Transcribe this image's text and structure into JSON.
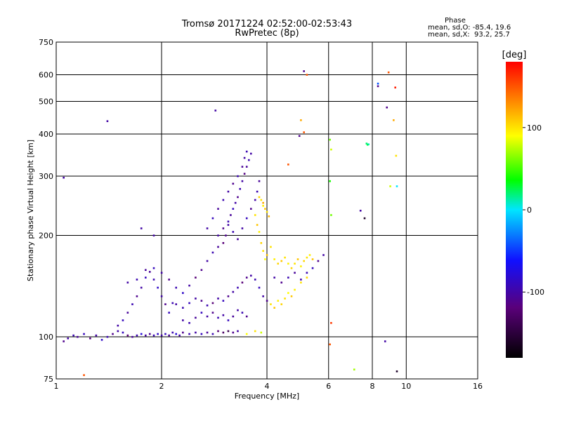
{
  "header": {
    "line1": "Tromsø 20171224 02:52:00-02:53:43",
    "line2": "RwPretec (8p)"
  },
  "phase_box": {
    "heading": "Phase",
    "o_line": "mean, sd,O: -85.4, 19.6",
    "x_line": "mean, sd,X:  93.2, 25.7"
  },
  "colorbar": {
    "unit_label": "[deg]",
    "ticks": [
      {
        "value": 100,
        "label": "100"
      },
      {
        "value": 0,
        "label": "0"
      },
      {
        "value": -100,
        "label": "-100"
      }
    ],
    "range": [
      -180,
      180
    ],
    "colors": [
      "#000000",
      "#5a007a",
      "#1010ff",
      "#00e5ff",
      "#00ff00",
      "#ffff00",
      "#ff0000"
    ]
  },
  "chart_data": {
    "type": "scatter",
    "title": "Tromsø 20171224 02:52:00-02:53:43",
    "subtitle": "RwPretec (8p)",
    "xlabel": "Frequency [MHz]",
    "ylabel": "Stationary phase Virtual Height [km]",
    "xscale": "log",
    "yscale": "log",
    "xlim": [
      1,
      16
    ],
    "ylim": [
      75,
      750
    ],
    "x_ticks": [
      1,
      2,
      4,
      6,
      8,
      10,
      16
    ],
    "x_tick_labels": [
      "1",
      "2",
      "4",
      "6",
      "8",
      "10",
      "16"
    ],
    "y_ticks": [
      75,
      100,
      200,
      300,
      400,
      500,
      600,
      750
    ],
    "y_tick_labels": [
      "75",
      "100",
      "200",
      "300",
      "400",
      "500",
      "600",
      "750"
    ],
    "grid": true,
    "color_encodes": "phase [deg]",
    "points": [
      [
        1.05,
        97,
        -110
      ],
      [
        1.08,
        99,
        -100
      ],
      [
        1.12,
        101,
        -95
      ],
      [
        1.15,
        100,
        -105
      ],
      [
        1.2,
        102,
        -90
      ],
      [
        1.25,
        99,
        -115
      ],
      [
        1.3,
        101,
        -100
      ],
      [
        1.35,
        98,
        -85
      ],
      [
        1.4,
        100,
        -95
      ],
      [
        1.45,
        102,
        -110
      ],
      [
        1.5,
        104,
        -100
      ],
      [
        1.55,
        103,
        -90
      ],
      [
        1.6,
        101,
        -120
      ],
      [
        1.65,
        100,
        -105
      ],
      [
        1.7,
        101,
        -95
      ],
      [
        1.75,
        102,
        -80
      ],
      [
        1.8,
        101,
        -100
      ],
      [
        1.85,
        102,
        -110
      ],
      [
        1.9,
        101,
        -95
      ],
      [
        1.95,
        102,
        -85
      ],
      [
        2.0,
        101,
        -100
      ],
      [
        2.05,
        102,
        -90
      ],
      [
        2.1,
        101,
        -105
      ],
      [
        2.15,
        103,
        -95
      ],
      [
        2.2,
        102,
        -80
      ],
      [
        2.25,
        101,
        -100
      ],
      [
        2.3,
        103,
        -110
      ],
      [
        2.4,
        102,
        -95
      ],
      [
        2.5,
        103,
        -100
      ],
      [
        2.6,
        102,
        -90
      ],
      [
        2.7,
        103,
        -105
      ],
      [
        2.8,
        102,
        -95
      ],
      [
        2.9,
        104,
        -120
      ],
      [
        3.0,
        103,
        -130
      ],
      [
        3.1,
        104,
        -140
      ],
      [
        3.2,
        103,
        -110
      ],
      [
        3.3,
        104,
        -100
      ],
      [
        3.5,
        102,
        90
      ],
      [
        3.7,
        104,
        100
      ],
      [
        3.85,
        103,
        80
      ],
      [
        1.5,
        108,
        -100
      ],
      [
        1.55,
        112,
        -90
      ],
      [
        1.6,
        118,
        -105
      ],
      [
        1.65,
        125,
        -95
      ],
      [
        1.7,
        132,
        -110
      ],
      [
        1.75,
        140,
        -100
      ],
      [
        1.8,
        150,
        -90
      ],
      [
        1.85,
        156,
        -105
      ],
      [
        1.9,
        148,
        -95
      ],
      [
        1.95,
        140,
        -85
      ],
      [
        2.0,
        132,
        -100
      ],
      [
        2.05,
        125,
        -110
      ],
      [
        2.1,
        118,
        -90
      ],
      [
        2.15,
        126,
        -95
      ],
      [
        1.6,
        145,
        -100
      ],
      [
        1.7,
        148,
        -95
      ],
      [
        1.8,
        158,
        -105
      ],
      [
        1.9,
        160,
        -90
      ],
      [
        2.0,
        155,
        -100
      ],
      [
        2.1,
        148,
        -110
      ],
      [
        2.2,
        140,
        -95
      ],
      [
        2.3,
        135,
        -85
      ],
      [
        2.4,
        142,
        -100
      ],
      [
        2.5,
        150,
        -120
      ],
      [
        2.6,
        158,
        -110
      ],
      [
        2.7,
        168,
        -100
      ],
      [
        2.8,
        178,
        -95
      ],
      [
        2.9,
        185,
        -105
      ],
      [
        2.2,
        125,
        -100
      ],
      [
        2.3,
        122,
        -95
      ],
      [
        2.4,
        126,
        -90
      ],
      [
        2.5,
        130,
        -100
      ],
      [
        2.6,
        128,
        -110
      ],
      [
        2.7,
        124,
        -95
      ],
      [
        2.8,
        126,
        -120
      ],
      [
        2.9,
        130,
        -100
      ],
      [
        3.0,
        128,
        -90
      ],
      [
        3.1,
        132,
        -110
      ],
      [
        3.2,
        136,
        -100
      ],
      [
        3.3,
        140,
        -95
      ],
      [
        3.4,
        145,
        -120
      ],
      [
        3.5,
        150,
        -110
      ],
      [
        3.6,
        152,
        -100
      ],
      [
        3.7,
        148,
        -95
      ],
      [
        3.8,
        140,
        -90
      ],
      [
        3.9,
        132,
        -100
      ],
      [
        4.0,
        128,
        -110
      ],
      [
        2.3,
        112,
        -100
      ],
      [
        2.4,
        110,
        -95
      ],
      [
        2.5,
        114,
        -105
      ],
      [
        2.6,
        118,
        -90
      ],
      [
        2.7,
        115,
        -100
      ],
      [
        2.8,
        118,
        -110
      ],
      [
        2.9,
        114,
        -95
      ],
      [
        3.0,
        116,
        -100
      ],
      [
        3.1,
        112,
        -90
      ],
      [
        3.2,
        115,
        -105
      ],
      [
        3.3,
        120,
        -100
      ],
      [
        3.4,
        118,
        -95
      ],
      [
        3.5,
        115,
        -110
      ],
      [
        2.9,
        200,
        -100
      ],
      [
        3.0,
        210,
        -110
      ],
      [
        3.1,
        220,
        -95
      ],
      [
        3.15,
        230,
        -105
      ],
      [
        3.2,
        240,
        -90
      ],
      [
        3.25,
        250,
        -100
      ],
      [
        3.3,
        260,
        -110
      ],
      [
        3.35,
        275,
        -95
      ],
      [
        3.4,
        290,
        -100
      ],
      [
        3.45,
        305,
        -115
      ],
      [
        3.5,
        320,
        -105
      ],
      [
        3.55,
        335,
        -95
      ],
      [
        3.6,
        350,
        -100
      ],
      [
        3.0,
        190,
        -120
      ],
      [
        3.05,
        200,
        -110
      ],
      [
        3.1,
        215,
        -100
      ],
      [
        3.2,
        205,
        -95
      ],
      [
        3.3,
        195,
        -105
      ],
      [
        3.4,
        210,
        -100
      ],
      [
        3.5,
        225,
        -90
      ],
      [
        3.6,
        240,
        -110
      ],
      [
        3.7,
        255,
        -100
      ],
      [
        3.75,
        270,
        -95
      ],
      [
        3.8,
        290,
        -105
      ],
      [
        2.7,
        210,
        -100
      ],
      [
        2.8,
        225,
        -90
      ],
      [
        2.9,
        240,
        -105
      ],
      [
        3.0,
        255,
        -95
      ],
      [
        3.1,
        270,
        -100
      ],
      [
        3.2,
        285,
        -110
      ],
      [
        3.3,
        300,
        -95
      ],
      [
        3.4,
        320,
        -105
      ],
      [
        3.45,
        340,
        -100
      ],
      [
        3.5,
        355,
        -95
      ],
      [
        3.7,
        230,
        100
      ],
      [
        3.75,
        215,
        110
      ],
      [
        3.8,
        205,
        95
      ],
      [
        3.85,
        190,
        105
      ],
      [
        3.9,
        180,
        100
      ],
      [
        3.95,
        170,
        90
      ],
      [
        4.0,
        175,
        110
      ],
      [
        4.1,
        185,
        100
      ],
      [
        4.2,
        170,
        95
      ],
      [
        4.3,
        165,
        105
      ],
      [
        4.4,
        168,
        110
      ],
      [
        4.5,
        172,
        100
      ],
      [
        4.6,
        165,
        95
      ],
      [
        4.7,
        160,
        105
      ],
      [
        4.8,
        165,
        100
      ],
      [
        4.9,
        170,
        110
      ],
      [
        5.0,
        162,
        95
      ],
      [
        5.1,
        168,
        105
      ],
      [
        5.2,
        172,
        100
      ],
      [
        5.3,
        175,
        95
      ],
      [
        5.4,
        170,
        110
      ],
      [
        4.2,
        150,
        -100
      ],
      [
        4.4,
        145,
        -110
      ],
      [
        4.6,
        150,
        -95
      ],
      [
        4.8,
        155,
        -105
      ],
      [
        5.0,
        148,
        -100
      ],
      [
        5.2,
        155,
        -95
      ],
      [
        5.4,
        160,
        -90
      ],
      [
        5.6,
        168,
        -110
      ],
      [
        5.8,
        175,
        -100
      ],
      [
        4.1,
        125,
        100
      ],
      [
        4.2,
        122,
        110
      ],
      [
        4.3,
        128,
        95
      ],
      [
        4.4,
        125,
        105
      ],
      [
        4.5,
        130,
        100
      ],
      [
        4.6,
        135,
        90
      ],
      [
        4.7,
        132,
        110
      ],
      [
        4.8,
        138,
        95
      ],
      [
        5.0,
        145,
        100
      ],
      [
        5.2,
        150,
        105
      ],
      [
        5.1,
        615,
        -110
      ],
      [
        5.2,
        600,
        150
      ],
      [
        5.0,
        440,
        120
      ],
      [
        5.1,
        405,
        150
      ],
      [
        4.95,
        395,
        -110
      ],
      [
        4.6,
        325,
        150
      ],
      [
        6.05,
        385,
        60
      ],
      [
        6.1,
        360,
        80
      ],
      [
        6.05,
        290,
        40
      ],
      [
        6.1,
        230,
        60
      ],
      [
        7.4,
        237,
        -100
      ],
      [
        7.6,
        225,
        -160
      ],
      [
        7.7,
        375,
        20
      ],
      [
        7.75,
        372,
        30
      ],
      [
        7.8,
        373,
        10
      ],
      [
        8.3,
        565,
        -40
      ],
      [
        8.3,
        555,
        -110
      ],
      [
        8.8,
        480,
        -110
      ],
      [
        8.9,
        610,
        150
      ],
      [
        9.3,
        550,
        170
      ],
      [
        9.2,
        440,
        120
      ],
      [
        9.35,
        345,
        100
      ],
      [
        9.4,
        280,
        0
      ],
      [
        9.0,
        280,
        80
      ],
      [
        1.4,
        437,
        -100
      ],
      [
        1.75,
        210,
        -100
      ],
      [
        1.9,
        200,
        -100
      ],
      [
        1.05,
        297,
        -100
      ],
      [
        2.85,
        470,
        -100
      ],
      [
        7.1,
        80,
        70
      ],
      [
        9.4,
        79,
        -160
      ],
      [
        1.2,
        77,
        150
      ],
      [
        6.1,
        110,
        160
      ],
      [
        6.05,
        95,
        150
      ],
      [
        8.7,
        97,
        -100
      ],
      [
        3.9,
        250,
        120
      ],
      [
        3.95,
        240,
        110
      ],
      [
        4.0,
        235,
        100
      ],
      [
        4.05,
        228,
        115
      ],
      [
        3.8,
        260,
        105
      ],
      [
        3.85,
        255,
        100
      ],
      [
        3.9,
        245,
        95
      ]
    ]
  }
}
